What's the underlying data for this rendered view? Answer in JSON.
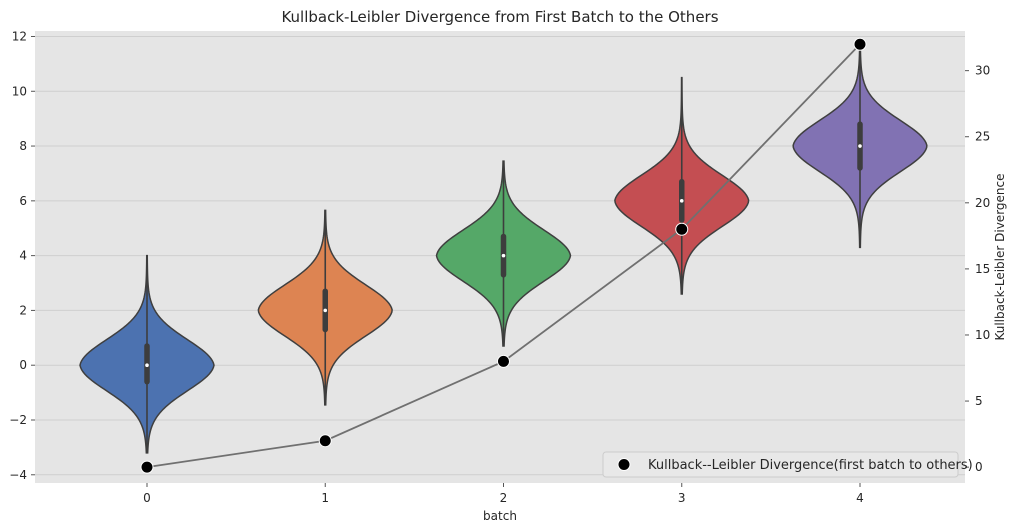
{
  "chart_data": {
    "type": "violin",
    "title": "Kullback-Leibler Divergence from First Batch to the Others",
    "xlabel": "batch",
    "ylabel": "",
    "ylabel_right": "Kullback-Leibler Divergence",
    "categories": [
      "0",
      "1",
      "2",
      "3",
      "4"
    ],
    "ylim": [
      -4.3,
      12.2
    ],
    "ylim_right": [
      -1.2,
      33.0
    ],
    "yticks": [
      "−4",
      "−2",
      "0",
      "2",
      "4",
      "6",
      "8",
      "10",
      "12"
    ],
    "yticks_right": [
      "0",
      "5",
      "10",
      "15",
      "20",
      "25",
      "30"
    ],
    "grid": true,
    "violins": [
      {
        "batch": "0",
        "median": 0.0,
        "q1": -0.6,
        "q3": 0.7,
        "min": -3.2,
        "max": 4.0,
        "color": "#4c72b0"
      },
      {
        "batch": "1",
        "median": 2.0,
        "q1": 1.3,
        "q3": 2.7,
        "min": -1.45,
        "max": 5.65,
        "color": "#dd8452"
      },
      {
        "batch": "2",
        "median": 4.0,
        "q1": 3.3,
        "q3": 4.7,
        "min": 0.7,
        "max": 7.45,
        "color": "#55a868"
      },
      {
        "batch": "3",
        "median": 6.0,
        "q1": 5.3,
        "q3": 6.7,
        "min": 2.6,
        "max": 10.5,
        "color": "#c44e52"
      },
      {
        "batch": "4",
        "median": 8.0,
        "q1": 7.2,
        "q3": 8.8,
        "min": 4.3,
        "max": 11.6,
        "color": "#8172b3"
      }
    ],
    "series": [
      {
        "name": "Kullback--Leibler Divergence(first batch to others)",
        "axis": "right",
        "x": [
          "0",
          "1",
          "2",
          "3",
          "4"
        ],
        "values": [
          0.0,
          2.0,
          8.0,
          18.0,
          32.0
        ]
      }
    ],
    "legend_position": "lower-right"
  },
  "colors": {
    "plot_background": "#e5e5e5",
    "grid": "#cfcfcf",
    "line": "#707070",
    "marker": "#000000",
    "violin_edge": "#3f3f3f"
  }
}
